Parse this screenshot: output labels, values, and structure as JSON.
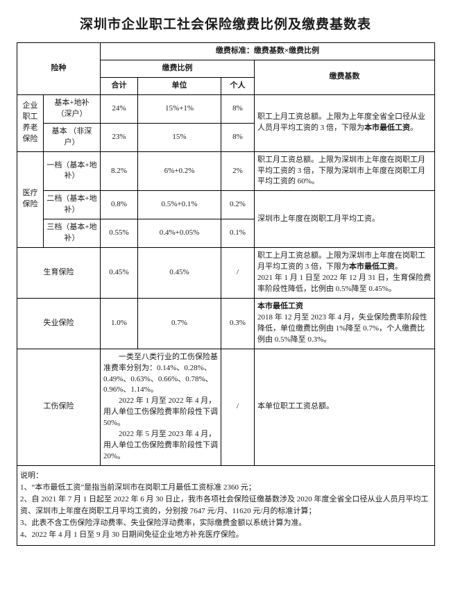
{
  "title": "深圳市企业职工社会保险缴费比例及缴费基数表",
  "header": {
    "standard": "缴费标准：缴费基数×缴费比例",
    "ins_type": "险种",
    "ratio": "缴费比例",
    "base": "缴费基数",
    "total": "合计",
    "unit": "单位",
    "person": "个人"
  },
  "pension": {
    "group": "企业职工养老保险",
    "row1": {
      "sub": "基本+地补\n（深户）",
      "total": "24%",
      "unit": "15%+1%",
      "person": "8%"
    },
    "row2": {
      "sub": "基本\n（非深户）",
      "total": "23%",
      "unit": "15%",
      "person": "8%"
    },
    "base": "职工上月工资总额。上限为上年度全省全口径从业人员月平均工资的 3 倍，下限为",
    "base_bold": "本市最低工资",
    "base_tail": "。"
  },
  "medical": {
    "group": "医疗保险",
    "r1": {
      "sub": "一档（基本+地补）",
      "total": "8.2%",
      "unit": "6%+0.2%",
      "person": "2%",
      "base": "职工月工资总额。上限为深圳市上年度在岗职工月平均工资的 3 倍，下限为深圳市上年度在岗职工月平均工资的 60%。"
    },
    "r2": {
      "sub": "二档（基本+地补）",
      "total": "0.8%",
      "unit": "0.5%+0.1%",
      "person": "0.2%"
    },
    "r3": {
      "sub": "三档（基本+地补）",
      "total": "0.55%",
      "unit": "0.4%+0.05%",
      "person": "0.1%"
    },
    "base23": "深圳市上年度在岗职工月平均工资。"
  },
  "maternity": {
    "name": "生育保险",
    "total": "0.45%",
    "unit": "0.45%",
    "person": "/",
    "base_a": "职工上月工资总额。上限为深圳市上年度在岗职工月平均工资的 3 倍，下限为",
    "base_bold": "本市最低工资",
    "base_b": "。\n2021 年 1 月 1 日至 2022 年 12 月 31 日，生育保险费率阶段性降低，比例由 0.5%降至 0.45%。"
  },
  "unemployment": {
    "name": "失业保险",
    "total": "1.0%",
    "unit": "0.7%",
    "person": "0.3%",
    "base_bold": "本市最低工资",
    "base_b": "\n2018 年 12 月至 2023 年 4 月，失业保险费率阶段性降低，单位缴费比例由 1%降至 0.7%，个人缴费比例由 0.5%降至 0.3%。"
  },
  "injury": {
    "name": "工伤保险",
    "desc": "　　一类至八类行业的工伤保险基准费率分别为：0.14%、0.28%、0.49%、0.63%、0.66%、0.78%、0.96%、1.14%。\n　　2022 年 1 月至 2022 年 4 月，用人单位工伤保险费率阶段性下调 50%。\n　　2022 年 5 月至 2023 年 4 月，用人单位工伤保险费率阶段性下调 20%。",
    "person": "/",
    "base": "本单位职工工资总额。"
  },
  "notes": {
    "hdr": "说明：",
    "n1": "1、“本市最低工资”是指当前深圳市在岗职工月最低工资标准 2360 元；",
    "n2": "2、自 2021 年 7 月 1 日起至 2022 年 6 月 30 日止，我市各项社会保险征缴基数涉及 2020 年度全省全口径从业人员月平均工资、深圳市上年度在岗职工月平均工资的，分别按 7647 元/月、11620 元/月的标准计算；",
    "n3": "3、此表不含工伤保险浮动费率、失业保险浮动费率，实际缴费金额以系统计算为准。",
    "n4": "4、2022 年 4 月 1 日至 9 月 30 日期间免征企业地方补充医疗保险。"
  },
  "cols": {
    "c1": 38,
    "c2": 82,
    "c3": 54,
    "c4": 120,
    "c5": 48,
    "c6": 260
  }
}
